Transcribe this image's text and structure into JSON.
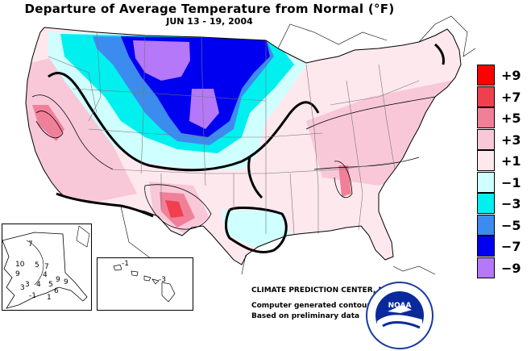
{
  "title": "Departure of Average Temperature from Normal (°F)",
  "subtitle": "JUN 13 - 19, 2004",
  "legend": [
    {
      "label": "+9",
      "color": "#ff0000"
    },
    {
      "label": "+7",
      "color": "#f04050"
    },
    {
      "label": "+5",
      "color": "#f08098"
    },
    {
      "label": "+3",
      "color": "#f8c8d8"
    },
    {
      "label": "+1",
      "color": "#fde8ee"
    },
    {
      "label": "−1",
      "color": "#d0ffff"
    },
    {
      "label": "−3",
      "color": "#00f0f0"
    },
    {
      "label": "−5",
      "color": "#3c8cf0"
    },
    {
      "label": "−7",
      "color": "#0000f0"
    },
    {
      "label": "−9",
      "color": "#b478f8"
    }
  ],
  "credits": {
    "org": "CLIMATE PREDICTION CENTER, NOAA",
    "line1": "Computer generated contours",
    "line2": "Based on preliminary data"
  },
  "logo": {
    "text": "NOAA"
  },
  "alaska_labels": [
    "7",
    "10",
    "9",
    "5",
    "7",
    "4",
    "3",
    "4",
    "5",
    "6",
    "-1",
    "1",
    "9",
    "9",
    "3"
  ],
  "hawaii_labels": [
    "-1",
    "-3"
  ]
}
